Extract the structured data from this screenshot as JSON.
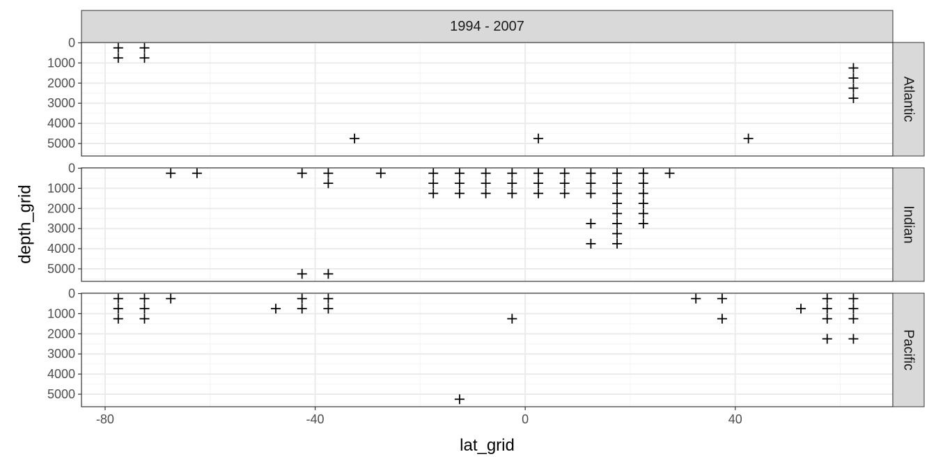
{
  "chart_data": {
    "type": "scatter",
    "marker": "plus",
    "title": "",
    "column_strip": "1994 - 2007",
    "xlabel": "lat_grid",
    "ylabel": "depth_grid",
    "xlim": [
      -84.5,
      70
    ],
    "ylim": [
      5500,
      0
    ],
    "y_reversed": true,
    "x_ticks": [
      -80,
      -40,
      0,
      40
    ],
    "x_tick_labels": [
      "-80",
      "-40",
      "0",
      "40"
    ],
    "y_ticks": [
      0,
      1000,
      2000,
      3000,
      4000,
      5000
    ],
    "y_tick_labels": [
      "0",
      "1000",
      "2000",
      "3000",
      "4000",
      "5000"
    ],
    "grid": true,
    "legend": "none",
    "colors": {
      "panel_border": "#333333",
      "strip_fill": "#d9d9d9",
      "grid_major": "#ebebeb",
      "grid_minor": "#f4f4f4",
      "point": "#000000"
    },
    "panels": [
      {
        "name": "Atlantic",
        "points": [
          {
            "x": -77.5,
            "y": 250
          },
          {
            "x": -77.5,
            "y": 750
          },
          {
            "x": -72.5,
            "y": 250
          },
          {
            "x": -72.5,
            "y": 750
          },
          {
            "x": -32.5,
            "y": 4750
          },
          {
            "x": 2.5,
            "y": 4750
          },
          {
            "x": 42.5,
            "y": 4750
          },
          {
            "x": 62.5,
            "y": 1250
          },
          {
            "x": 62.5,
            "y": 1750
          },
          {
            "x": 62.5,
            "y": 2250
          },
          {
            "x": 62.5,
            "y": 2750
          }
        ]
      },
      {
        "name": "Indian",
        "points": [
          {
            "x": -67.5,
            "y": 250
          },
          {
            "x": -62.5,
            "y": 250
          },
          {
            "x": -42.5,
            "y": 250
          },
          {
            "x": -42.5,
            "y": 5250
          },
          {
            "x": -37.5,
            "y": 250
          },
          {
            "x": -37.5,
            "y": 750
          },
          {
            "x": -37.5,
            "y": 5250
          },
          {
            "x": -27.5,
            "y": 250
          },
          {
            "x": -17.5,
            "y": 250
          },
          {
            "x": -17.5,
            "y": 750
          },
          {
            "x": -17.5,
            "y": 1250
          },
          {
            "x": -12.5,
            "y": 250
          },
          {
            "x": -12.5,
            "y": 750
          },
          {
            "x": -12.5,
            "y": 1250
          },
          {
            "x": -7.5,
            "y": 250
          },
          {
            "x": -7.5,
            "y": 750
          },
          {
            "x": -7.5,
            "y": 1250
          },
          {
            "x": -2.5,
            "y": 250
          },
          {
            "x": -2.5,
            "y": 750
          },
          {
            "x": -2.5,
            "y": 1250
          },
          {
            "x": 2.5,
            "y": 250
          },
          {
            "x": 2.5,
            "y": 750
          },
          {
            "x": 2.5,
            "y": 1250
          },
          {
            "x": 7.5,
            "y": 250
          },
          {
            "x": 7.5,
            "y": 750
          },
          {
            "x": 7.5,
            "y": 1250
          },
          {
            "x": 12.5,
            "y": 250
          },
          {
            "x": 12.5,
            "y": 750
          },
          {
            "x": 12.5,
            "y": 1250
          },
          {
            "x": 12.5,
            "y": 2750
          },
          {
            "x": 12.5,
            "y": 3750
          },
          {
            "x": 17.5,
            "y": 250
          },
          {
            "x": 17.5,
            "y": 750
          },
          {
            "x": 17.5,
            "y": 1250
          },
          {
            "x": 17.5,
            "y": 1750
          },
          {
            "x": 17.5,
            "y": 2250
          },
          {
            "x": 17.5,
            "y": 2750
          },
          {
            "x": 17.5,
            "y": 3250
          },
          {
            "x": 17.5,
            "y": 3750
          },
          {
            "x": 22.5,
            "y": 250
          },
          {
            "x": 22.5,
            "y": 750
          },
          {
            "x": 22.5,
            "y": 1250
          },
          {
            "x": 22.5,
            "y": 1750
          },
          {
            "x": 22.5,
            "y": 2250
          },
          {
            "x": 22.5,
            "y": 2750
          },
          {
            "x": 27.5,
            "y": 250
          }
        ]
      },
      {
        "name": "Pacific",
        "points": [
          {
            "x": -77.5,
            "y": 250
          },
          {
            "x": -77.5,
            "y": 750
          },
          {
            "x": -77.5,
            "y": 1250
          },
          {
            "x": -72.5,
            "y": 250
          },
          {
            "x": -72.5,
            "y": 750
          },
          {
            "x": -72.5,
            "y": 1250
          },
          {
            "x": -67.5,
            "y": 250
          },
          {
            "x": -47.5,
            "y": 750
          },
          {
            "x": -42.5,
            "y": 250
          },
          {
            "x": -42.5,
            "y": 750
          },
          {
            "x": -37.5,
            "y": 250
          },
          {
            "x": -37.5,
            "y": 750
          },
          {
            "x": -12.5,
            "y": 5250
          },
          {
            "x": -2.5,
            "y": 1250
          },
          {
            "x": 32.5,
            "y": 250
          },
          {
            "x": 37.5,
            "y": 250
          },
          {
            "x": 37.5,
            "y": 1250
          },
          {
            "x": 52.5,
            "y": 750
          },
          {
            "x": 57.5,
            "y": 250
          },
          {
            "x": 57.5,
            "y": 750
          },
          {
            "x": 57.5,
            "y": 1250
          },
          {
            "x": 57.5,
            "y": 2250
          },
          {
            "x": 62.5,
            "y": 250
          },
          {
            "x": 62.5,
            "y": 750
          },
          {
            "x": 62.5,
            "y": 1250
          },
          {
            "x": 62.5,
            "y": 2250
          }
        ]
      }
    ]
  }
}
